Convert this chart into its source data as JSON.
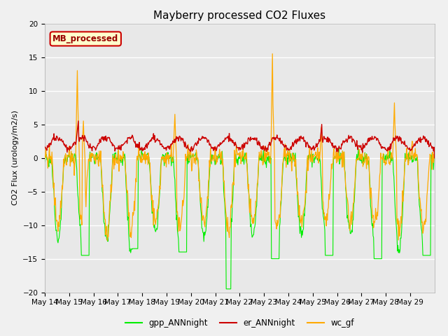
{
  "title": "Mayberry processed CO2 Fluxes",
  "ylabel": "CO2 Flux (urology/m2/s)",
  "ylim": [
    -20,
    20
  ],
  "yticks": [
    -20,
    -15,
    -10,
    -5,
    0,
    5,
    10,
    15,
    20
  ],
  "xlabel_dates": [
    "May 14",
    "May 15",
    "May 16",
    "May 17",
    "May 18",
    "May 19",
    "May 20",
    "May 21",
    "May 22",
    "May 23",
    "May 24",
    "May 25",
    "May 26",
    "May 27",
    "May 28",
    "May 29"
  ],
  "n_days": 16,
  "points_per_day": 48,
  "colors": {
    "gpp": "#00ee00",
    "er": "#cc0000",
    "wc": "#ffaa00",
    "background": "#f0f0f0",
    "plot_bg": "#e8e8e8",
    "legend_box_face": "#ffffcc",
    "legend_box_edge": "#cc0000",
    "legend_text": "#990000"
  },
  "legend_label": "MB_processed",
  "series_labels": [
    "gpp_ANNnight",
    "er_ANNnight",
    "wc_gf"
  ],
  "title_fontsize": 11,
  "axis_fontsize": 8,
  "tick_fontsize": 7.5
}
